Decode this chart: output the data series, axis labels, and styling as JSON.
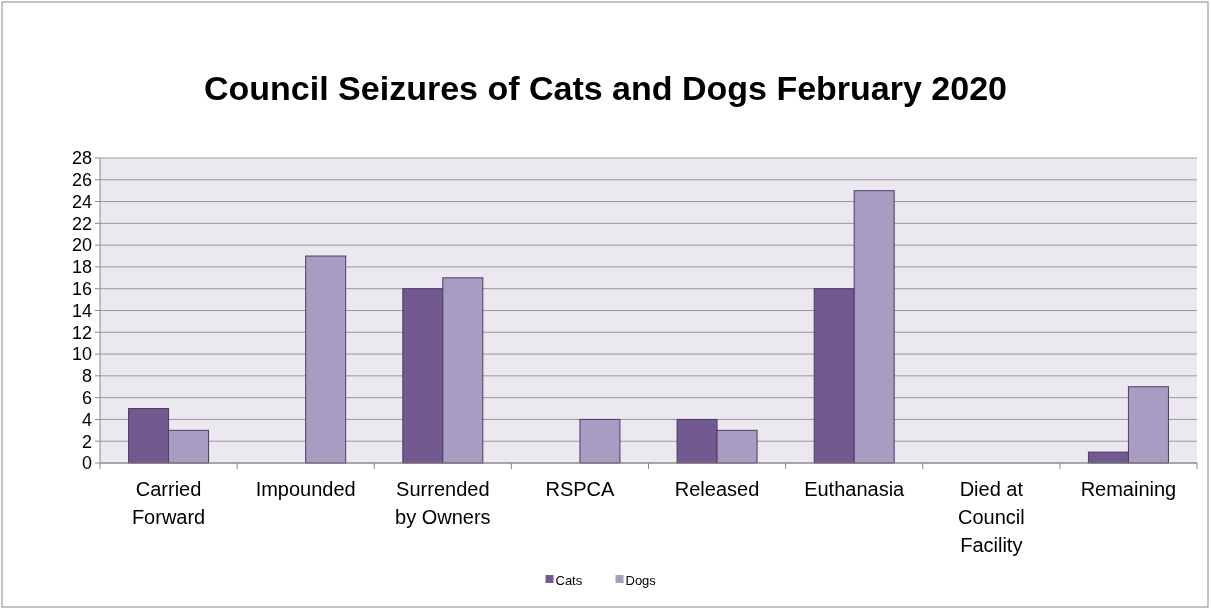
{
  "chart_data": {
    "type": "bar",
    "title": "Council Seizures of Cats and Dogs February 2020",
    "categories": [
      "Carried Forward",
      "Impounded",
      "Surrended by Owners",
      "RSPCA",
      "Released",
      "Euthanasia",
      "Died at Council Facility",
      "Remaining"
    ],
    "series": [
      {
        "name": "Cats",
        "color": "#725a91",
        "values": [
          5,
          0,
          16,
          0,
          4,
          16,
          0,
          1
        ]
      },
      {
        "name": "Dogs",
        "color": "#a99cc2",
        "values": [
          3,
          19,
          17,
          4,
          3,
          25,
          0,
          7
        ]
      }
    ],
    "ylim": [
      0,
      28
    ],
    "yticks": [
      0,
      2,
      4,
      6,
      8,
      10,
      12,
      14,
      16,
      18,
      20,
      22,
      24,
      26,
      28
    ],
    "grid": "y",
    "legend": "bottom"
  }
}
